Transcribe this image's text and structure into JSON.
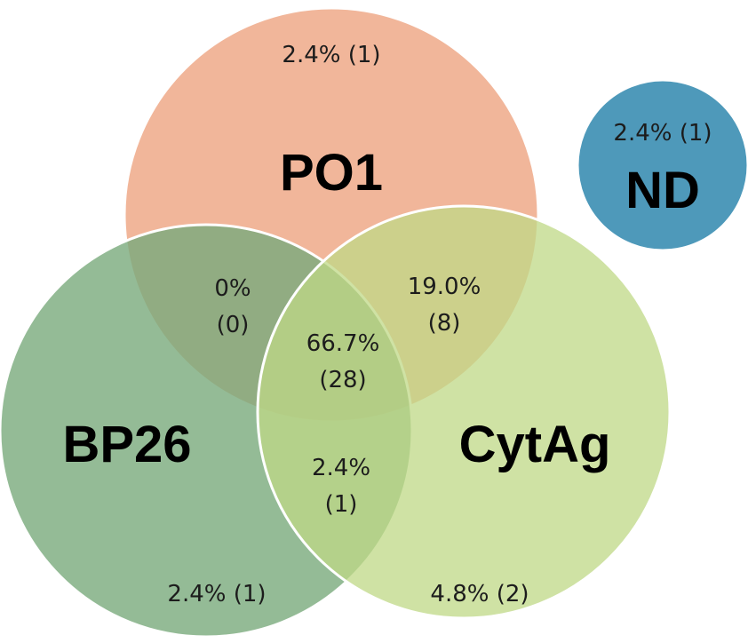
{
  "sets": {
    "po1": {
      "name": "PO1",
      "color": "#EFAE8F"
    },
    "bp26": {
      "name": "BP26",
      "color": "#79AA7C"
    },
    "cytag": {
      "name": "CytAg",
      "color": "#BFD886"
    },
    "nd": {
      "name": "ND",
      "color": "#4E99BA"
    }
  },
  "regions": {
    "po1_only": "2.4% (1)",
    "nd_only": "2.4% (1)",
    "po1_bp26": {
      "pct": "0%",
      "count": "(0)"
    },
    "po1_cytag": {
      "pct": "19.0%",
      "count": "(8)"
    },
    "all_three": {
      "pct": "66.7%",
      "count": "(28)"
    },
    "bp26_cytag": {
      "pct": "2.4%",
      "count": "(1)"
    },
    "bp26_only": "2.4% (1)",
    "cytag_only": "4.8% (2)"
  }
}
